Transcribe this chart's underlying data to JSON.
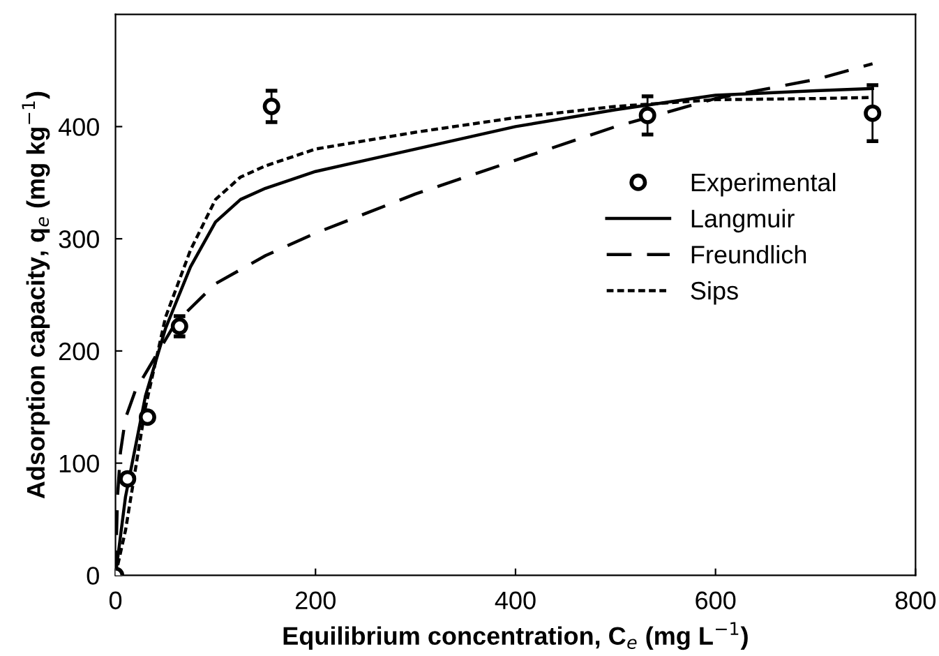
{
  "chart_data": {
    "type": "line",
    "xlabel": "Equilibrium concentration, C$_{e}$ (mg L$^{−1}$)",
    "ylabel": "Adsorption capacity, q$_{e}$ (mg kg$^{−1}$)",
    "xlim": [
      0,
      800
    ],
    "xticks": [
      0,
      200,
      400,
      600,
      800
    ],
    "ylim": [
      0,
      500
    ],
    "yticks": [
      0,
      100,
      200,
      300,
      400
    ],
    "grid": false,
    "legend": "right",
    "series": [
      {
        "name": "Experimental",
        "type": "scatter",
        "marker": "circle",
        "color": "#000000",
        "x": [
          0,
          12,
          32,
          64,
          156,
          532,
          757
        ],
        "values": [
          0,
          86,
          141,
          222,
          418,
          410,
          412
        ],
        "errors": [
          null,
          null,
          null,
          9,
          14,
          17,
          25
        ]
      },
      {
        "name": "Langmuir",
        "line_style": "solid",
        "color": "#000000",
        "x": [
          0,
          10,
          30,
          50,
          75,
          100,
          125,
          150,
          200,
          300,
          400,
          500,
          600,
          700,
          757
        ],
        "values": [
          0,
          70,
          160,
          220,
          275,
          315,
          335,
          345,
          360,
          380,
          400,
          415,
          428,
          432,
          434
        ]
      },
      {
        "name": "Freundlich",
        "line_style": "longdash",
        "color": "#000000",
        "x": [
          0,
          2,
          5,
          10,
          20,
          40,
          60,
          100,
          150,
          200,
          300,
          400,
          500,
          600,
          700,
          757
        ],
        "values": [
          0,
          70,
          110,
          140,
          165,
          195,
          225,
          260,
          285,
          305,
          340,
          370,
          400,
          425,
          442,
          456
        ]
      },
      {
        "name": "Sips",
        "line_style": "dotted",
        "color": "#000000",
        "x": [
          0,
          10,
          30,
          50,
          75,
          100,
          125,
          150,
          200,
          300,
          400,
          500,
          600,
          700,
          757
        ],
        "values": [
          0,
          40,
          150,
          230,
          290,
          335,
          355,
          365,
          380,
          395,
          408,
          418,
          424,
          425,
          426
        ]
      }
    ]
  }
}
